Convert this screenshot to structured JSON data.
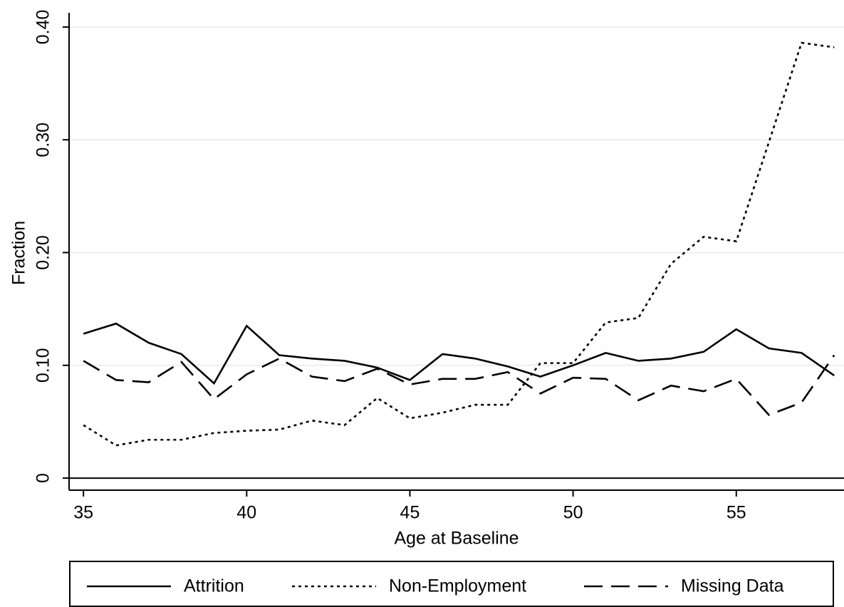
{
  "chart_data": {
    "type": "line",
    "x_label": "Age at Baseline",
    "y_label": "Fraction",
    "x": [
      35,
      36,
      37,
      38,
      39,
      40,
      41,
      42,
      43,
      44,
      45,
      46,
      47,
      48,
      49,
      50,
      51,
      52,
      53,
      54,
      55,
      56,
      57,
      58
    ],
    "series": [
      {
        "name": "Attrition",
        "color": "#000000",
        "dash": "solid",
        "values": [
          0.128,
          0.137,
          0.12,
          0.11,
          0.084,
          0.135,
          0.109,
          0.106,
          0.104,
          0.098,
          0.087,
          0.11,
          0.106,
          0.099,
          0.09,
          0.1,
          0.111,
          0.104,
          0.106,
          0.112,
          0.132,
          0.115,
          0.111,
          0.091
        ]
      },
      {
        "name": "Non-Employment",
        "color": "#000000",
        "dash": "dotted",
        "values": [
          0.047,
          0.029,
          0.034,
          0.034,
          0.04,
          0.042,
          0.043,
          0.051,
          0.047,
          0.071,
          0.053,
          0.058,
          0.065,
          0.065,
          0.102,
          0.102,
          0.138,
          0.142,
          0.19,
          0.214,
          0.21,
          0.298,
          0.386,
          0.382
        ]
      },
      {
        "name": "Missing Data",
        "color": "#000000",
        "dash": "dashed",
        "values": [
          0.104,
          0.087,
          0.085,
          0.103,
          0.07,
          0.092,
          0.106,
          0.09,
          0.086,
          0.097,
          0.083,
          0.088,
          0.088,
          0.094,
          0.075,
          0.089,
          0.088,
          0.069,
          0.082,
          0.077,
          0.088,
          0.056,
          0.067,
          0.109
        ]
      }
    ],
    "xlim": [
      34.56,
      58.3
    ],
    "xticks": [
      35,
      40,
      45,
      50,
      55
    ],
    "ylim": [
      -0.0107,
      0.4126
    ],
    "yticks": [
      0,
      {
        "value": 0.1,
        "label": "0.10"
      },
      {
        "value": 0.2,
        "label": "0.20"
      },
      {
        "value": 0.3,
        "label": "0.30"
      },
      {
        "value": 0.4,
        "label": "0.40"
      }
    ],
    "grid": true,
    "grid_color": "#e8f0f2",
    "legend_position": "bottom"
  }
}
